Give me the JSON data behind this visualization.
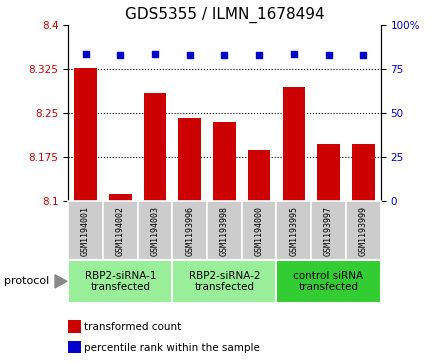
{
  "title": "GDS5355 / ILMN_1678494",
  "samples": [
    "GSM1194001",
    "GSM1194002",
    "GSM1194003",
    "GSM1193996",
    "GSM1193998",
    "GSM1194000",
    "GSM1193995",
    "GSM1193997",
    "GSM1193999"
  ],
  "bar_values": [
    8.328,
    8.112,
    8.285,
    8.243,
    8.235,
    8.188,
    8.295,
    8.198,
    8.198
  ],
  "percentile_values": [
    84,
    83,
    84,
    83,
    83,
    83,
    84,
    83,
    83
  ],
  "bar_color": "#CC0000",
  "dot_color": "#0000CC",
  "ylim_left": [
    8.1,
    8.4
  ],
  "ylim_right": [
    0,
    100
  ],
  "yticks_left": [
    8.1,
    8.175,
    8.25,
    8.325,
    8.4
  ],
  "yticks_right": [
    0,
    25,
    50,
    75,
    100
  ],
  "ytick_labels_left": [
    "8.1",
    "8.175",
    "8.25",
    "8.325",
    "8.4"
  ],
  "ytick_labels_right": [
    "0",
    "25",
    "50",
    "75",
    "100%"
  ],
  "groups": [
    {
      "label": "RBP2-siRNA-1\ntransfected",
      "indices": [
        0,
        1,
        2
      ],
      "color": "#99ee99"
    },
    {
      "label": "RBP2-siRNA-2\ntransfected",
      "indices": [
        3,
        4,
        5
      ],
      "color": "#99ee99"
    },
    {
      "label": "control siRNA\ntransfected",
      "indices": [
        6,
        7,
        8
      ],
      "color": "#33cc33"
    }
  ],
  "protocol_label": "protocol",
  "legend_bar_label": "transformed count",
  "legend_dot_label": "percentile rank within the sample",
  "bar_width": 0.65,
  "base_value": 8.1,
  "grid_color": "#000000",
  "sample_box_color": "#cccccc",
  "title_fontsize": 11,
  "tick_fontsize": 7.5,
  "sample_fontsize": 6.0,
  "group_fontsize": 7.5,
  "legend_fontsize": 7.5,
  "protocol_fontsize": 8
}
